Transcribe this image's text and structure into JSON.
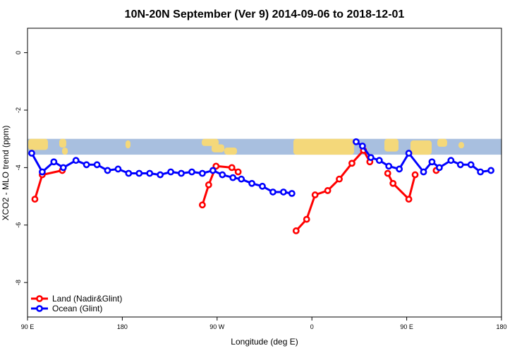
{
  "chart_data": {
    "type": "line",
    "title": "10N-20N September (Ver 9)   2014-09-06 to 2018-12-01",
    "xlabel": "Longitude (deg E)",
    "ylabel": "XCO2 - MLO trend (ppm)",
    "xlim": [
      90,
      540
    ],
    "ylim": [
      -9.2,
      0.85
    ],
    "x_ticks": [
      {
        "value": 90,
        "label": "90 E"
      },
      {
        "value": 180,
        "label": "180"
      },
      {
        "value": 270,
        "label": "90 W"
      },
      {
        "value": 360,
        "label": "0"
      },
      {
        "value": 450,
        "label": "90 E"
      },
      {
        "value": 540,
        "label": "180"
      }
    ],
    "y_ticks": [
      {
        "value": 0,
        "label": "0"
      },
      {
        "value": -2,
        "label": "-2"
      },
      {
        "value": -4,
        "label": "-4"
      },
      {
        "value": -6,
        "label": "-6"
      },
      {
        "value": -8,
        "label": "-8"
      }
    ],
    "map_strip": {
      "y_top": -3.0,
      "y_bottom": -3.55,
      "ocean_color": "#a8bfdf",
      "land_color": "#f4d87a"
    },
    "legend": {
      "position": "bottom-left"
    },
    "series": [
      {
        "name": "Land (Nadir&Glint)",
        "color": "#ff0000",
        "segments": [
          [
            [
              97,
              -5.1
            ],
            [
              104,
              -4.25
            ],
            [
              123,
              -4.1
            ]
          ],
          [
            [
              256,
              -5.3
            ],
            [
              262,
              -4.6
            ],
            [
              269,
              -3.95
            ],
            [
              284,
              -4.0
            ],
            [
              290,
              -4.15
            ]
          ],
          [
            [
              345,
              -6.2
            ],
            [
              355,
              -5.8
            ],
            [
              363,
              -4.95
            ],
            [
              375,
              -4.8
            ],
            [
              386,
              -4.4
            ],
            [
              398,
              -3.85
            ],
            [
              409,
              -3.4
            ],
            [
              415,
              -3.8
            ]
          ],
          [
            [
              432,
              -4.2
            ],
            [
              437,
              -4.55
            ],
            [
              452,
              -5.1
            ],
            [
              458,
              -4.25
            ]
          ],
          [
            [
              478,
              -4.1
            ]
          ]
        ]
      },
      {
        "name": "Ocean (Glint)",
        "color": "#0000ff",
        "segments": [
          [
            [
              94,
              -3.5
            ],
            [
              104,
              -4.15
            ],
            [
              115,
              -3.8
            ],
            [
              124,
              -4.0
            ],
            [
              136,
              -3.75
            ],
            [
              146,
              -3.9
            ],
            [
              156,
              -3.9
            ],
            [
              166,
              -4.1
            ],
            [
              176,
              -4.05
            ],
            [
              186,
              -4.2
            ],
            [
              196,
              -4.2
            ],
            [
              206,
              -4.2
            ],
            [
              216,
              -4.25
            ],
            [
              226,
              -4.15
            ],
            [
              236,
              -4.2
            ],
            [
              246,
              -4.15
            ],
            [
              256,
              -4.2
            ],
            [
              266,
              -4.1
            ],
            [
              275,
              -4.25
            ],
            [
              285,
              -4.35
            ],
            [
              293,
              -4.4
            ],
            [
              303,
              -4.55
            ],
            [
              313,
              -4.65
            ],
            [
              323,
              -4.85
            ],
            [
              333,
              -4.85
            ],
            [
              341,
              -4.9
            ]
          ],
          [
            [
              402,
              -3.1
            ],
            [
              408,
              -3.25
            ],
            [
              416,
              -3.65
            ],
            [
              424,
              -3.75
            ],
            [
              433,
              -3.95
            ],
            [
              443,
              -4.05
            ],
            [
              452,
              -3.5
            ],
            [
              466,
              -4.15
            ],
            [
              474,
              -3.8
            ],
            [
              481,
              -4.0
            ],
            [
              492,
              -3.75
            ],
            [
              501,
              -3.9
            ],
            [
              511,
              -3.9
            ],
            [
              520,
              -4.15
            ],
            [
              530,
              -4.1
            ]
          ]
        ]
      }
    ]
  }
}
